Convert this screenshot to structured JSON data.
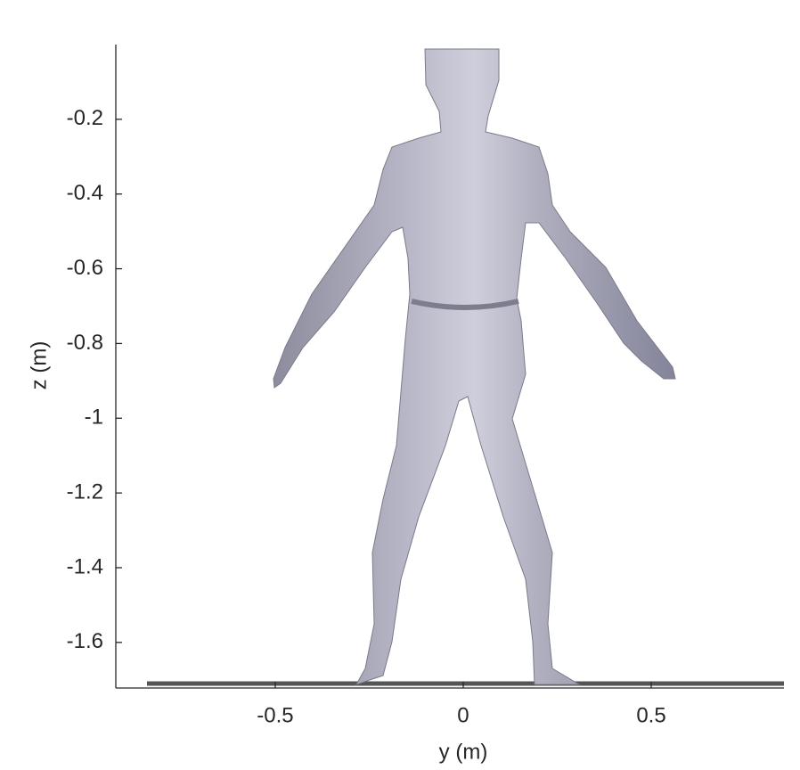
{
  "chart_data": {
    "type": "mesh",
    "xlabel": "y (m)",
    "ylabel": "z (m)",
    "xlim": [
      -0.924,
      0.853
    ],
    "ylim": [
      -1.722,
      0
    ],
    "xticks": [
      -0.5,
      0,
      0.5
    ],
    "yticks": [
      -1.6,
      -1.4,
      -1.2,
      -1,
      -0.8,
      -0.6,
      -0.4,
      -0.2
    ]
  }
}
